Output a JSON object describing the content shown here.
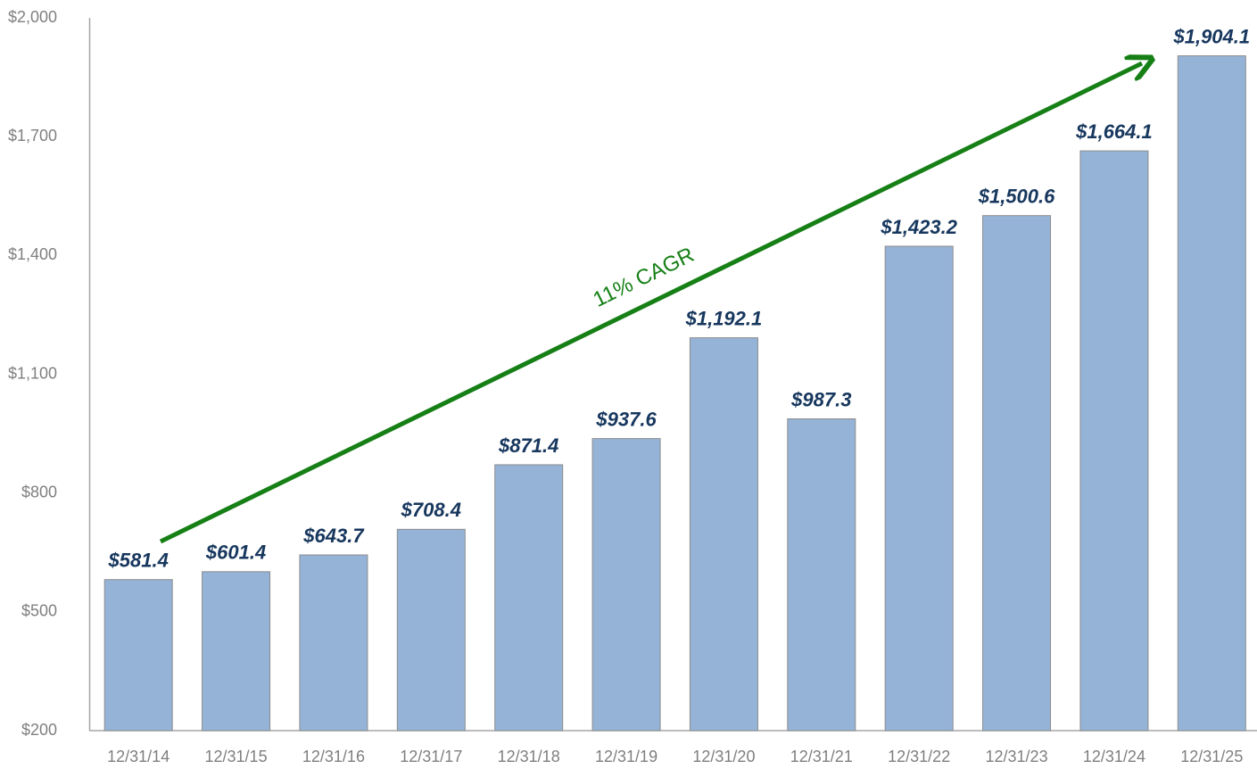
{
  "chart_data": {
    "type": "bar",
    "categories": [
      "12/31/14",
      "12/31/15",
      "12/31/16",
      "12/31/17",
      "12/31/18",
      "12/31/19",
      "12/31/20",
      "12/31/21",
      "12/31/22",
      "12/31/23",
      "12/31/24",
      "12/31/25"
    ],
    "values": [
      581.4,
      601.4,
      643.7,
      708.4,
      871.4,
      937.6,
      1192.1,
      987.3,
      1423.2,
      1500.6,
      1664.1,
      1904.1
    ],
    "value_labels": [
      "$581.4",
      "$601.4",
      "$643.7",
      "$708.4",
      "$871.4",
      "$937.6",
      "$1,192.1",
      "$987.3",
      "$1,423.2",
      "$1,500.6",
      "$1,664.1",
      "$1,904.1"
    ],
    "color": "#95b3d7",
    "ylim": [
      200,
      2000
    ],
    "yticks": [
      {
        "value": 200,
        "label": "$200"
      },
      {
        "value": 500,
        "label": "$500"
      },
      {
        "value": 800,
        "label": "$800"
      },
      {
        "value": 1100,
        "label": "$1,100"
      },
      {
        "value": 1400,
        "label": "$1,400"
      },
      {
        "value": 1700,
        "label": "$1,700"
      },
      {
        "value": 2000,
        "label": "$2,000"
      }
    ],
    "grid": false,
    "annotation": "11% CAGR"
  }
}
